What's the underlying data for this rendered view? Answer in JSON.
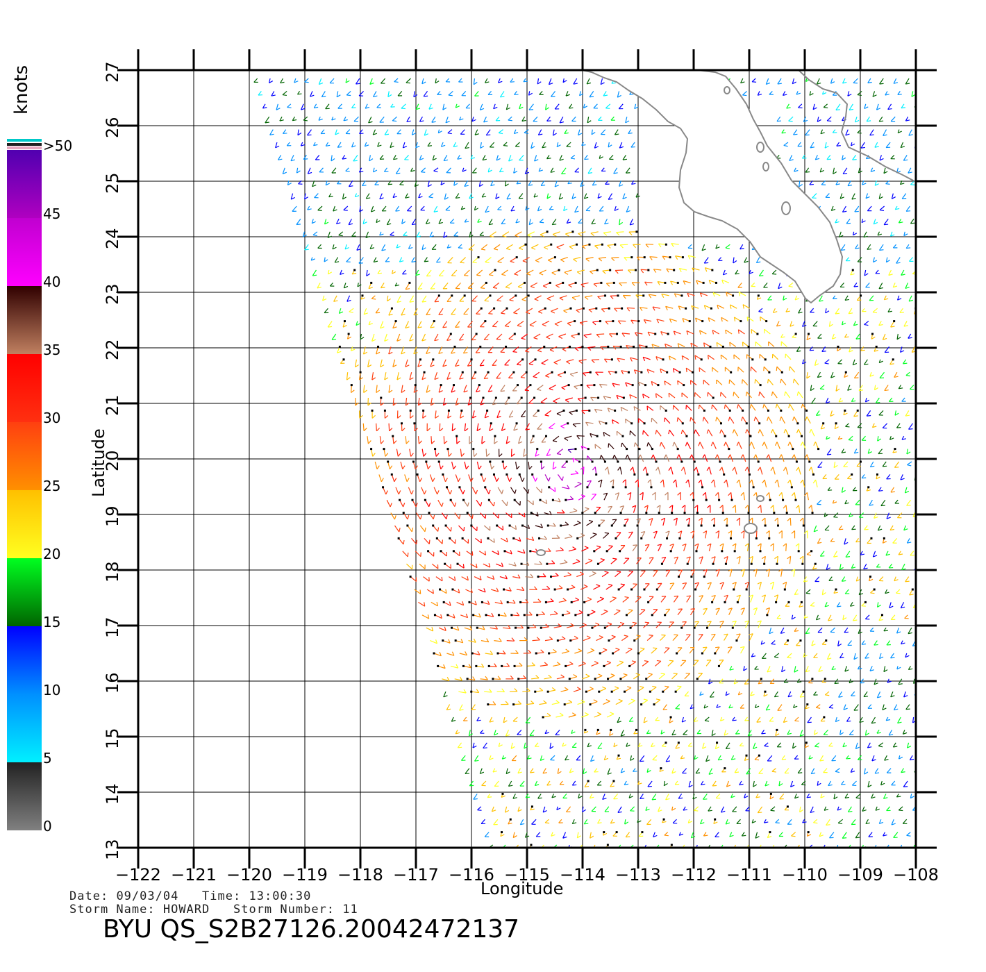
{
  "map": {
    "x_axis": {
      "label": "Longitude",
      "ticks": [
        "−122",
        "−121",
        "−120",
        "−119",
        "−118",
        "−117",
        "−116",
        "−115",
        "−114",
        "−113",
        "−112",
        "−111",
        "−110",
        "−109",
        "−108"
      ],
      "range": [
        -122,
        -108
      ]
    },
    "y_axis": {
      "label": "Latitude",
      "ticks": [
        "13",
        "14",
        "15",
        "16",
        "17",
        "18",
        "19",
        "20",
        "21",
        "22",
        "23",
        "24",
        "25",
        "26",
        "27"
      ],
      "range": [
        13,
        27
      ]
    },
    "grid": true,
    "storm_center": {
      "lon": -114.2,
      "lat": 19.8
    },
    "land_labels": []
  },
  "colorbar": {
    "unit": "knots",
    "labels": [
      ">50",
      "45",
      "40",
      "35",
      "30",
      "25",
      "20",
      "15",
      "10",
      "5",
      "0"
    ],
    "bands": [
      {
        "from": 0,
        "to": 5,
        "colors": [
          "#808080",
          "#222222"
        ]
      },
      {
        "from": 5,
        "to": 10,
        "colors": [
          "#00f0ff",
          "#0090ff"
        ]
      },
      {
        "from": 10,
        "to": 15,
        "colors": [
          "#0090ff",
          "#0000ff"
        ]
      },
      {
        "from": 15,
        "to": 20,
        "colors": [
          "#006400",
          "#00ff20"
        ]
      },
      {
        "from": 20,
        "to": 25,
        "colors": [
          "#ffff20",
          "#ffc000"
        ]
      },
      {
        "from": 25,
        "to": 30,
        "colors": [
          "#ff9000",
          "#ff4010"
        ]
      },
      {
        "from": 30,
        "to": 35,
        "colors": [
          "#ff3010",
          "#ff0000"
        ]
      },
      {
        "from": 35,
        "to": 40,
        "colors": [
          "#c08060",
          "#300000"
        ]
      },
      {
        "from": 40,
        "to": 45,
        "colors": [
          "#ff00ff",
          "#c000d0"
        ]
      },
      {
        "from": 45,
        "to": 50,
        "colors": [
          "#b000c0",
          "#5000b0"
        ]
      }
    ]
  },
  "info": {
    "date_label": "Date:",
    "date": "09/03/04",
    "time_label": "Time:",
    "time": "13:00:30",
    "storm_name_label": "Storm Name:",
    "storm_name": "HOWARD",
    "storm_number_label": "Storm Number:",
    "storm_number": "11",
    "product": "BYU QS_S2B27126.20042472137"
  }
}
